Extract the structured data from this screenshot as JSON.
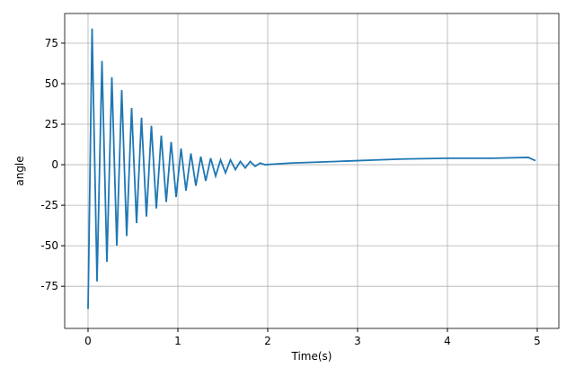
{
  "chart_data": {
    "type": "line",
    "xlabel": "Time(s)",
    "ylabel": "angle",
    "x": [
      0,
      0.045,
      0.1,
      0.155,
      0.21,
      0.265,
      0.32,
      0.375,
      0.43,
      0.485,
      0.54,
      0.595,
      0.65,
      0.705,
      0.76,
      0.815,
      0.87,
      0.925,
      0.98,
      1.035,
      1.09,
      1.145,
      1.2,
      1.255,
      1.31,
      1.365,
      1.42,
      1.475,
      1.53,
      1.585,
      1.64,
      1.695,
      1.75,
      1.805,
      1.86,
      1.915,
      1.97,
      2.25,
      2.5,
      2.75,
      3.0,
      3.25,
      3.5,
      4.0,
      4.5,
      4.9,
      4.98
    ],
    "series": [
      {
        "name": "angle",
        "color": "#1f77b4",
        "values": [
          -89,
          84,
          -72,
          64,
          -60,
          54,
          -50,
          46,
          -44,
          35,
          -36,
          29,
          -32,
          24,
          -27,
          18,
          -23,
          14,
          -20,
          10,
          -16,
          7,
          -13,
          5,
          -10,
          4,
          -7,
          3,
          -5,
          3,
          -3,
          2,
          -2,
          2,
          -1,
          1,
          0,
          1,
          1.5,
          2,
          2.5,
          3,
          3.5,
          4,
          4,
          4.5,
          2.5
        ]
      }
    ],
    "xlim": [
      -0.26,
      5.24
    ],
    "ylim": [
      -101,
      93.3
    ],
    "xticks": [
      0,
      1,
      2,
      3,
      4,
      5
    ],
    "yticks": [
      -75,
      -50,
      -25,
      0,
      25,
      50,
      75
    ],
    "grid": true
  }
}
